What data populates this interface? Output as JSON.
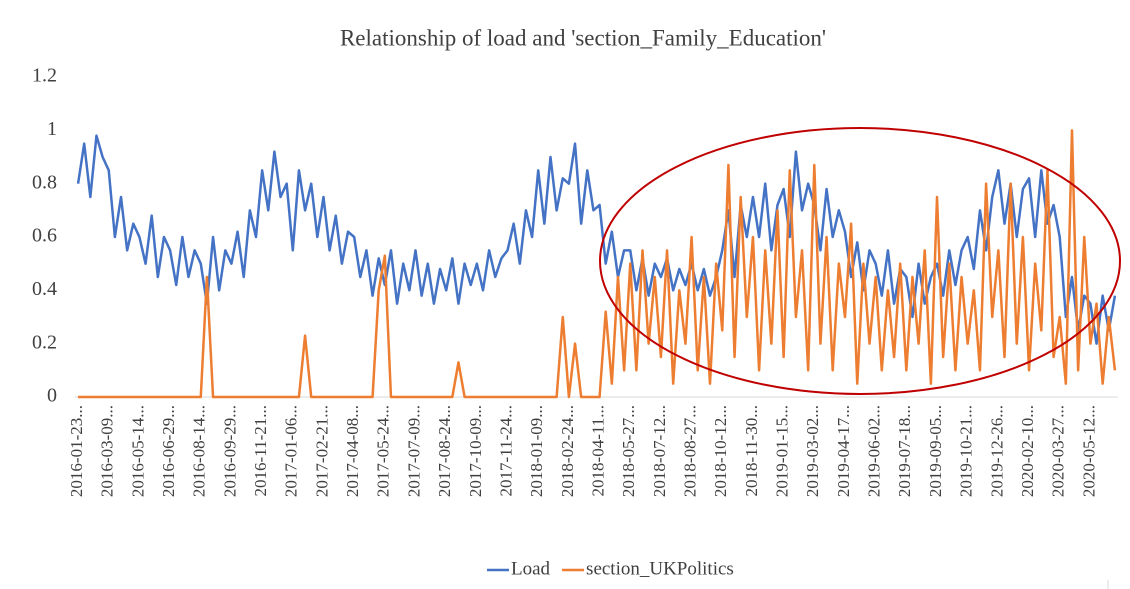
{
  "chart_data": {
    "type": "line",
    "title": "Relationship of load and 'section_Family_Education'",
    "categories": [
      "2016-01-23...",
      null,
      null,
      null,
      null,
      "2016-03-09...",
      null,
      null,
      null,
      null,
      "2016-05-14...",
      null,
      null,
      null,
      null,
      "2016-06-29...",
      null,
      null,
      null,
      null,
      "2016-08-14...",
      null,
      null,
      null,
      null,
      "2016-09-29...",
      null,
      null,
      null,
      null,
      "2016-11-21...",
      null,
      null,
      null,
      null,
      "2017-01-06...",
      null,
      null,
      null,
      null,
      "2017-02-21...",
      null,
      null,
      null,
      null,
      "2017-04-08...",
      null,
      null,
      null,
      null,
      "2017-05-24...",
      null,
      null,
      null,
      null,
      "2017-07-09...",
      null,
      null,
      null,
      null,
      "2017-08-24...",
      null,
      null,
      null,
      null,
      "2017-10-09...",
      null,
      null,
      null,
      null,
      "2017-11-24...",
      null,
      null,
      null,
      null,
      "2018-01-09...",
      null,
      null,
      null,
      null,
      "2018-02-24...",
      null,
      null,
      null,
      null,
      "2018-04-11...",
      null,
      null,
      null,
      null,
      "2018-05-27...",
      null,
      null,
      null,
      null,
      "2018-07-12...",
      null,
      null,
      null,
      null,
      "2018-08-27...",
      null,
      null,
      null,
      null,
      "2018-10-12...",
      null,
      null,
      null,
      null,
      "2018-11-30...",
      null,
      null,
      null,
      null,
      "2019-01-15...",
      null,
      null,
      null,
      null,
      "2019-03-02...",
      null,
      null,
      null,
      null,
      "2019-04-17...",
      null,
      null,
      null,
      null,
      "2019-06-02...",
      null,
      null,
      null,
      null,
      "2019-07-18...",
      null,
      null,
      null,
      null,
      "2019-09-05...",
      null,
      null,
      null,
      null,
      "2019-10-21...",
      null,
      null,
      null,
      null,
      "2019-12-26...",
      null,
      null,
      null,
      null,
      "2020-02-10...",
      null,
      null,
      null,
      null,
      "2020-03-27...",
      null,
      null,
      null,
      null,
      "2020-05-12...",
      null,
      null,
      null,
      null
    ],
    "series": [
      {
        "name": "Load",
        "color": "#4472c4",
        "values": [
          0.8,
          0.95,
          0.75,
          0.98,
          0.9,
          0.85,
          0.6,
          0.75,
          0.55,
          0.65,
          0.6,
          0.5,
          0.68,
          0.45,
          0.6,
          0.55,
          0.42,
          0.6,
          0.45,
          0.55,
          0.5,
          0.35,
          0.6,
          0.4,
          0.55,
          0.5,
          0.62,
          0.45,
          0.7,
          0.6,
          0.85,
          0.7,
          0.92,
          0.75,
          0.8,
          0.55,
          0.85,
          0.7,
          0.8,
          0.6,
          0.75,
          0.55,
          0.68,
          0.5,
          0.62,
          0.6,
          0.45,
          0.55,
          0.38,
          0.52,
          0.42,
          0.55,
          0.35,
          0.5,
          0.4,
          0.55,
          0.38,
          0.5,
          0.35,
          0.48,
          0.4,
          0.52,
          0.35,
          0.5,
          0.42,
          0.5,
          0.4,
          0.55,
          0.45,
          0.52,
          0.55,
          0.65,
          0.5,
          0.7,
          0.6,
          0.85,
          0.65,
          0.9,
          0.7,
          0.82,
          0.8,
          0.95,
          0.65,
          0.85,
          0.7,
          0.72,
          0.5,
          0.62,
          0.45,
          0.55,
          0.55,
          0.4,
          0.52,
          0.38,
          0.5,
          0.45,
          0.52,
          0.4,
          0.48,
          0.42,
          0.5,
          0.4,
          0.48,
          0.38,
          0.45,
          0.55,
          0.7,
          0.45,
          0.72,
          0.6,
          0.75,
          0.6,
          0.8,
          0.55,
          0.72,
          0.78,
          0.6,
          0.92,
          0.7,
          0.8,
          0.72,
          0.55,
          0.78,
          0.6,
          0.7,
          0.62,
          0.45,
          0.58,
          0.4,
          0.55,
          0.5,
          0.38,
          0.55,
          0.35,
          0.48,
          0.45,
          0.3,
          0.5,
          0.35,
          0.45,
          0.5,
          0.38,
          0.55,
          0.42,
          0.55,
          0.6,
          0.48,
          0.7,
          0.55,
          0.75,
          0.85,
          0.65,
          0.8,
          0.6,
          0.78,
          0.82,
          0.6,
          0.85,
          0.65,
          0.72,
          0.6,
          0.3,
          0.45,
          0.25,
          0.38,
          0.35,
          0.2,
          0.38,
          0.25,
          0.38
        ]
      },
      {
        "name": "section_UKPolitics",
        "color": "#ed7d31",
        "values": [
          0,
          0,
          0,
          0,
          0,
          0,
          0,
          0,
          0,
          0,
          0,
          0,
          0,
          0,
          0,
          0,
          0,
          0,
          0,
          0,
          0,
          0.45,
          0,
          0,
          0,
          0,
          0,
          0,
          0,
          0,
          0,
          0,
          0,
          0,
          0,
          0,
          0,
          0.23,
          0,
          0,
          0,
          0,
          0,
          0,
          0,
          0,
          0,
          0,
          0,
          0.4,
          0.53,
          0,
          0,
          0,
          0,
          0,
          0,
          0,
          0,
          0,
          0,
          0,
          0.13,
          0,
          0,
          0,
          0,
          0,
          0,
          0,
          0,
          0,
          0,
          0,
          0,
          0,
          0,
          0,
          0,
          0.3,
          0,
          0.2,
          0,
          0,
          0,
          0,
          0.32,
          0.05,
          0.45,
          0.1,
          0.5,
          0.1,
          0.55,
          0.2,
          0.45,
          0.15,
          0.55,
          0.05,
          0.4,
          0.2,
          0.6,
          0.1,
          0.45,
          0.05,
          0.5,
          0.25,
          0.87,
          0.15,
          0.75,
          0.3,
          0.6,
          0.1,
          0.55,
          0.2,
          0.7,
          0.15,
          0.85,
          0.3,
          0.55,
          0.1,
          0.87,
          0.2,
          0.6,
          0.1,
          0.5,
          0.3,
          0.65,
          0.05,
          0.5,
          0.2,
          0.45,
          0.1,
          0.4,
          0.15,
          0.5,
          0.1,
          0.45,
          0.2,
          0.55,
          0.05,
          0.75,
          0.15,
          0.5,
          0.1,
          0.45,
          0.2,
          0.4,
          0.1,
          0.8,
          0.3,
          0.55,
          0.15,
          0.8,
          0.2,
          0.6,
          0.1,
          0.5,
          0.25,
          0.85,
          0.15,
          0.3,
          0.05,
          1.0,
          0.1,
          0.6,
          0.2,
          0.35,
          0.05,
          0.3,
          0.1
        ]
      }
    ],
    "ylim": [
      0,
      1.2
    ],
    "yticks": [
      0,
      0.2,
      0.4,
      0.6,
      0.8,
      1,
      1.2
    ],
    "grid": false,
    "legend": "bottom"
  }
}
